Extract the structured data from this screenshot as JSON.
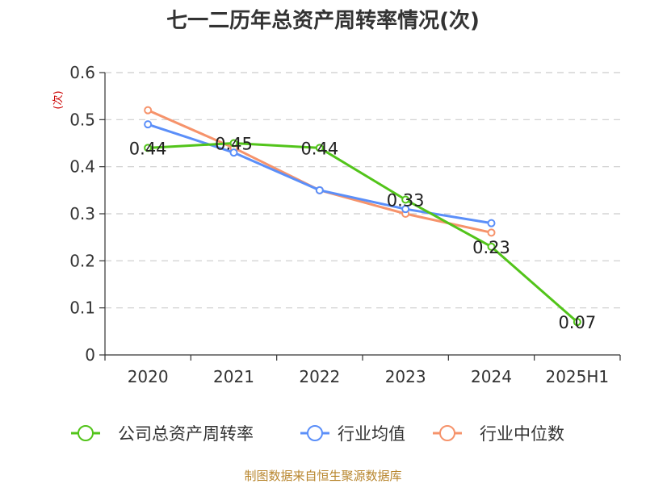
{
  "chart_data": {
    "type": "line",
    "title": "七一二历年总资产周转率情况(次)",
    "ylabel": "(次)",
    "xlabel": "",
    "categories": [
      "2020",
      "2021",
      "2022",
      "2023",
      "2024",
      "2025H1"
    ],
    "ylim": [
      0,
      0.6
    ],
    "yticks": [
      "0",
      "0.1",
      "0.2",
      "0.3",
      "0.4",
      "0.5",
      "0.6"
    ],
    "grid": true,
    "legend_position": "bottom",
    "series": [
      {
        "name": "公司总资产周转率",
        "color": "#52c41a",
        "values": [
          0.44,
          0.45,
          0.44,
          0.33,
          0.23,
          0.07
        ],
        "labels": [
          "0.44",
          "0.45",
          "0.44",
          "0.33",
          "0.23",
          "0.07"
        ]
      },
      {
        "name": "行业均值",
        "color": "#5b8ff9",
        "values": [
          0.49,
          0.43,
          0.35,
          0.31,
          0.28,
          null
        ]
      },
      {
        "name": "行业中位数",
        "color": "#f6936b",
        "values": [
          0.52,
          0.44,
          0.35,
          0.3,
          0.26,
          null
        ]
      }
    ]
  },
  "footer": {
    "source": "制图数据来自恒生聚源数据库"
  }
}
